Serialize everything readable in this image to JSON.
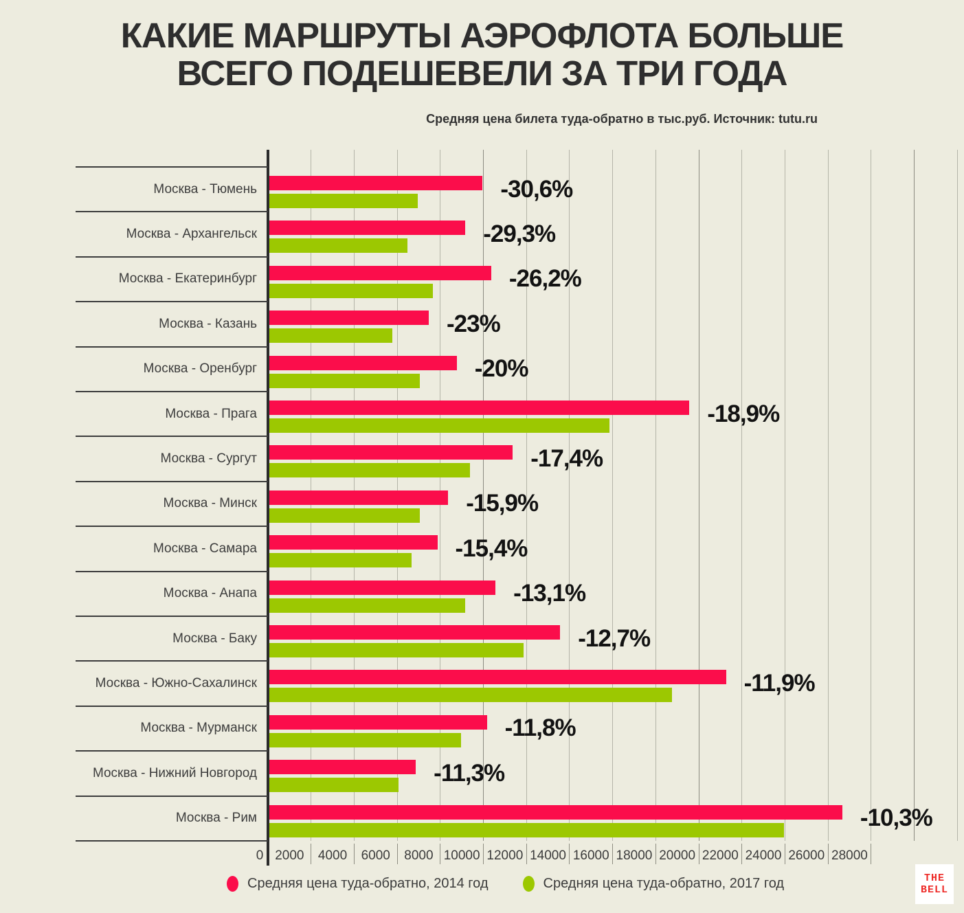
{
  "header": {
    "title_line1": "КАКИЕ МАРШРУТЫ АЭРОФЛОТА БОЛЬШЕ",
    "title_line2": "ВСЕГО ПОДЕШЕВЕЛИ ЗА ТРИ ГОДА",
    "subtitle": "Средняя цена билета туда-обратно в тыс.руб. Источник: tutu.ru"
  },
  "colors": {
    "background": "#edecdf",
    "bar_2014": "#fb0d4b",
    "bar_2017": "#9cc801",
    "grid_minor": "#b4b4a8",
    "grid_major": "#8b8b80",
    "axis": "#2b2b2b",
    "text": "#3b3b3b",
    "pct_text": "#121212",
    "logo_red": "#ee2b28",
    "logo_bg": "#ffffff"
  },
  "chart_data": {
    "type": "bar",
    "orientation": "horizontal",
    "title": "КАКИЕ МАРШРУТЫ АЭРОФЛОТА БОЛЬШЕ ВСЕГО ПОДЕШЕВЕЛИ ЗА ТРИ ГОДА",
    "subtitle": "Средняя цена билета туда-обратно в тыс.руб. Источник: tutu.ru",
    "categories": [
      "Москва - Тюмень",
      "Москва - Архангельск",
      "Москва - Екатеринбург",
      "Москва - Казань",
      "Москва - Оренбург",
      "Москва - Прага",
      "Москва - Сургут",
      "Москва - Минск",
      "Москва - Самара",
      "Москва - Анапа",
      "Москва - Баку",
      "Москва - Южно-Сахалинск",
      "Москва - Мурманск",
      "Москва - Нижний Новгород",
      "Москва - Рим"
    ],
    "series": [
      {
        "name": "Средняя цена туда-обратно, 2014 год",
        "color": "#fb0d4b",
        "values": [
          9900,
          9100,
          10300,
          7400,
          8700,
          19500,
          11300,
          8300,
          7800,
          10500,
          13500,
          21200,
          10100,
          6800,
          26600
        ]
      },
      {
        "name": "Средняя цена туда-обратно, 2017 год",
        "color": "#9cc801",
        "values": [
          6900,
          6400,
          7600,
          5700,
          7000,
          15800,
          9300,
          7000,
          6600,
          9100,
          11800,
          18700,
          8900,
          6000,
          23900
        ]
      }
    ],
    "change_labels": [
      "-30,6%",
      "-29,3%",
      "-26,2%",
      "-23%",
      "-20%",
      "-18,9%",
      "-17,4%",
      "-15,9%",
      "-15,4%",
      "-13,1%",
      "-12,7%",
      "-11,9%",
      "-11,8%",
      "-11,3%",
      "-10,3%"
    ],
    "xlim": [
      0,
      30000
    ],
    "xticks": [
      0,
      2000,
      4000,
      6000,
      8000,
      10000,
      12000,
      14000,
      16000,
      18000,
      20000,
      22000,
      24000,
      26000,
      28000
    ],
    "grid": true,
    "legend_position": "bottom"
  },
  "legend": {
    "items": [
      {
        "label": "Средняя цена туда-обратно, 2014 год",
        "color": "#fb0d4b"
      },
      {
        "label": "Средняя цена туда-обратно, 2017 год",
        "color": "#9cc801"
      }
    ]
  },
  "logo": {
    "line1": "THE",
    "line2": "BELL"
  }
}
